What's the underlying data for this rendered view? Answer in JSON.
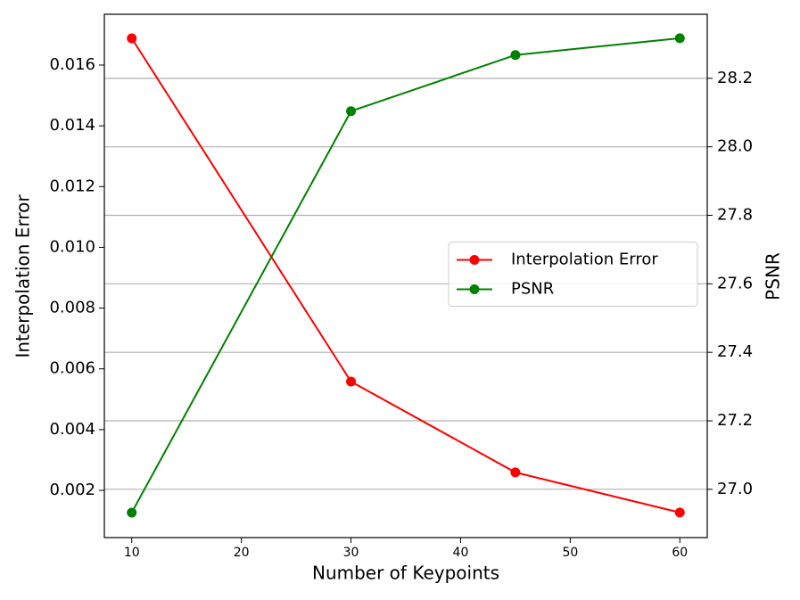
{
  "chart_data": {
    "type": "line",
    "xlabel": "Number of Keypoints",
    "ylabel": "Interpolation Error",
    "y2label": "PSNR",
    "ylabel_color": "#ff0000",
    "x": [
      10,
      30,
      45,
      60
    ],
    "series": [
      {
        "name": "Interpolation Error",
        "color": "#ff0000",
        "values": [
          0.01688,
          0.00558,
          0.00259,
          0.00127
        ]
      },
      {
        "name": "PSNR",
        "color": "#008000",
        "axis": "y2",
        "values": [
          26.932,
          28.104,
          28.268,
          28.317
        ]
      }
    ],
    "xlim": [
      7.5,
      62.5
    ],
    "xticks": [
      10,
      20,
      30,
      40,
      50,
      60
    ],
    "ylim": [
      0.000444,
      0.017673
    ],
    "yticks": [
      0.002,
      0.004,
      0.006,
      0.008,
      {
        "value": 0.01,
        "label": "0.010"
      },
      0.012,
      0.014,
      0.016
    ],
    "y2lim": [
      26.859,
      28.387
    ],
    "y2ticks": [
      {
        "value": 27,
        "label": "27.0"
      },
      27.2,
      27.4,
      27.6,
      27.8,
      {
        "value": 28,
        "label": "28.0"
      },
      28.2
    ],
    "grid": "y2",
    "legend": "center right"
  }
}
